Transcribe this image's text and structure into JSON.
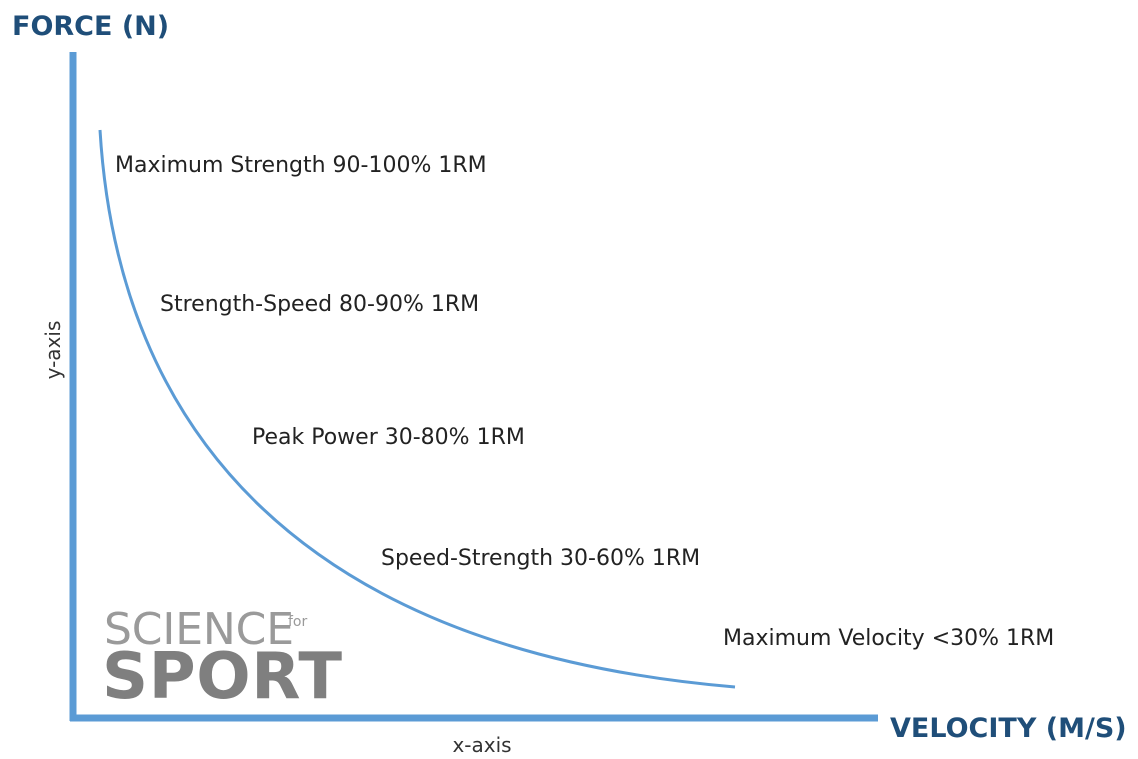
{
  "diagram": {
    "y_axis_title": "FORCE (N)",
    "x_axis_title": "VELOCITY (M/S)",
    "y_axis_label": "y-axis",
    "x_axis_label": "x-axis",
    "zones": [
      "Maximum Strength 90-100% 1RM",
      "Strength-Speed 80-90% 1RM",
      "Peak Power 30-80% 1RM",
      "Speed-Strength 30-60% 1RM",
      "Maximum Velocity <30% 1RM"
    ],
    "logo": {
      "top": "SCIENCE",
      "small": "for",
      "bottom": "SPORT"
    }
  }
}
